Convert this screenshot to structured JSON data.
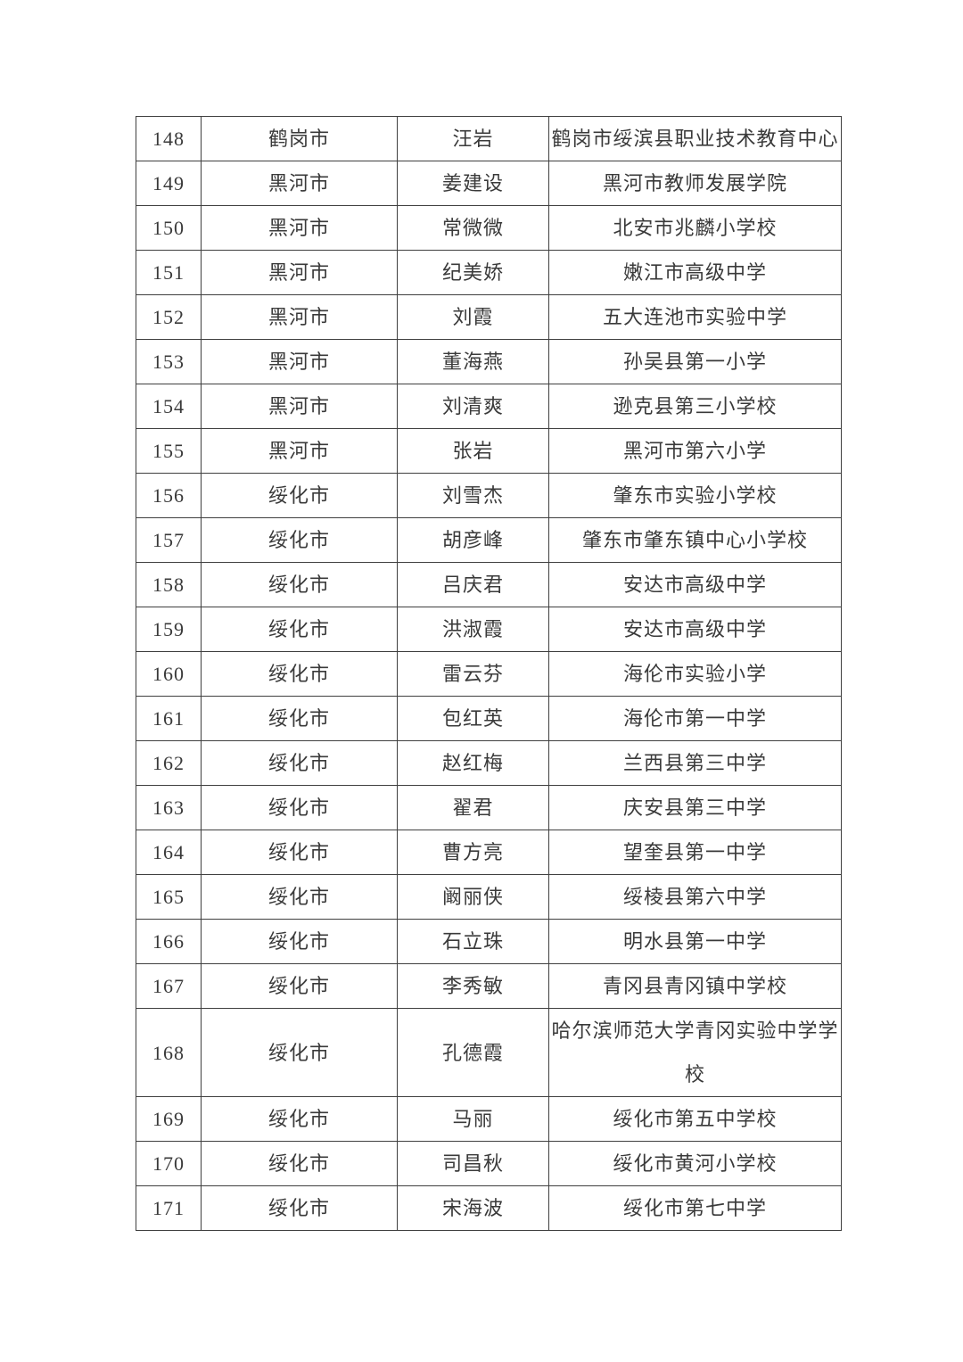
{
  "page": {
    "background_color": "#ffffff",
    "text_color": "#3a3a3a",
    "border_color": "#3f3f3f"
  },
  "table": {
    "rows": [
      {
        "no": "148",
        "city": "鹤岗市",
        "name": "汪岩",
        "school": "鹤岗市绥滨县职业技术教育中心"
      },
      {
        "no": "149",
        "city": "黑河市",
        "name": "姜建设",
        "school": "黑河市教师发展学院"
      },
      {
        "no": "150",
        "city": "黑河市",
        "name": "常微微",
        "school": "北安市兆麟小学校"
      },
      {
        "no": "151",
        "city": "黑河市",
        "name": "纪美娇",
        "school": "嫩江市高级中学"
      },
      {
        "no": "152",
        "city": "黑河市",
        "name": "刘霞",
        "school": "五大连池市实验中学"
      },
      {
        "no": "153",
        "city": "黑河市",
        "name": "董海燕",
        "school": "孙吴县第一小学"
      },
      {
        "no": "154",
        "city": "黑河市",
        "name": "刘清爽",
        "school": "逊克县第三小学校"
      },
      {
        "no": "155",
        "city": "黑河市",
        "name": "张岩",
        "school": "黑河市第六小学"
      },
      {
        "no": "156",
        "city": "绥化市",
        "name": "刘雪杰",
        "school": "肇东市实验小学校"
      },
      {
        "no": "157",
        "city": "绥化市",
        "name": "胡彦峰",
        "school": "肇东市肇东镇中心小学校"
      },
      {
        "no": "158",
        "city": "绥化市",
        "name": "吕庆君",
        "school": "安达市高级中学"
      },
      {
        "no": "159",
        "city": "绥化市",
        "name": "洪淑霞",
        "school": "安达市高级中学"
      },
      {
        "no": "160",
        "city": "绥化市",
        "name": "雷云芬",
        "school": "海伦市实验小学"
      },
      {
        "no": "161",
        "city": "绥化市",
        "name": "包红英",
        "school": "海伦市第一中学"
      },
      {
        "no": "162",
        "city": "绥化市",
        "name": "赵红梅",
        "school": "兰西县第三中学"
      },
      {
        "no": "163",
        "city": "绥化市",
        "name": "翟君",
        "school": "庆安县第三中学"
      },
      {
        "no": "164",
        "city": "绥化市",
        "name": "曹方亮",
        "school": "望奎县第一中学"
      },
      {
        "no": "165",
        "city": "绥化市",
        "name": "阚丽侠",
        "school": "绥棱县第六中学"
      },
      {
        "no": "166",
        "city": "绥化市",
        "name": "石立珠",
        "school": "明水县第一中学"
      },
      {
        "no": "167",
        "city": "绥化市",
        "name": "李秀敏",
        "school": "青冈县青冈镇中学校"
      },
      {
        "no": "168",
        "city": "绥化市",
        "name": "孔德霞",
        "school": "哈尔滨师范大学青冈实验中学学校"
      },
      {
        "no": "169",
        "city": "绥化市",
        "name": "马丽",
        "school": "绥化市第五中学校"
      },
      {
        "no": "170",
        "city": "绥化市",
        "name": "司昌秋",
        "school": "绥化市黄河小学校"
      },
      {
        "no": "171",
        "city": "绥化市",
        "name": "宋海波",
        "school": "绥化市第七中学"
      }
    ]
  }
}
